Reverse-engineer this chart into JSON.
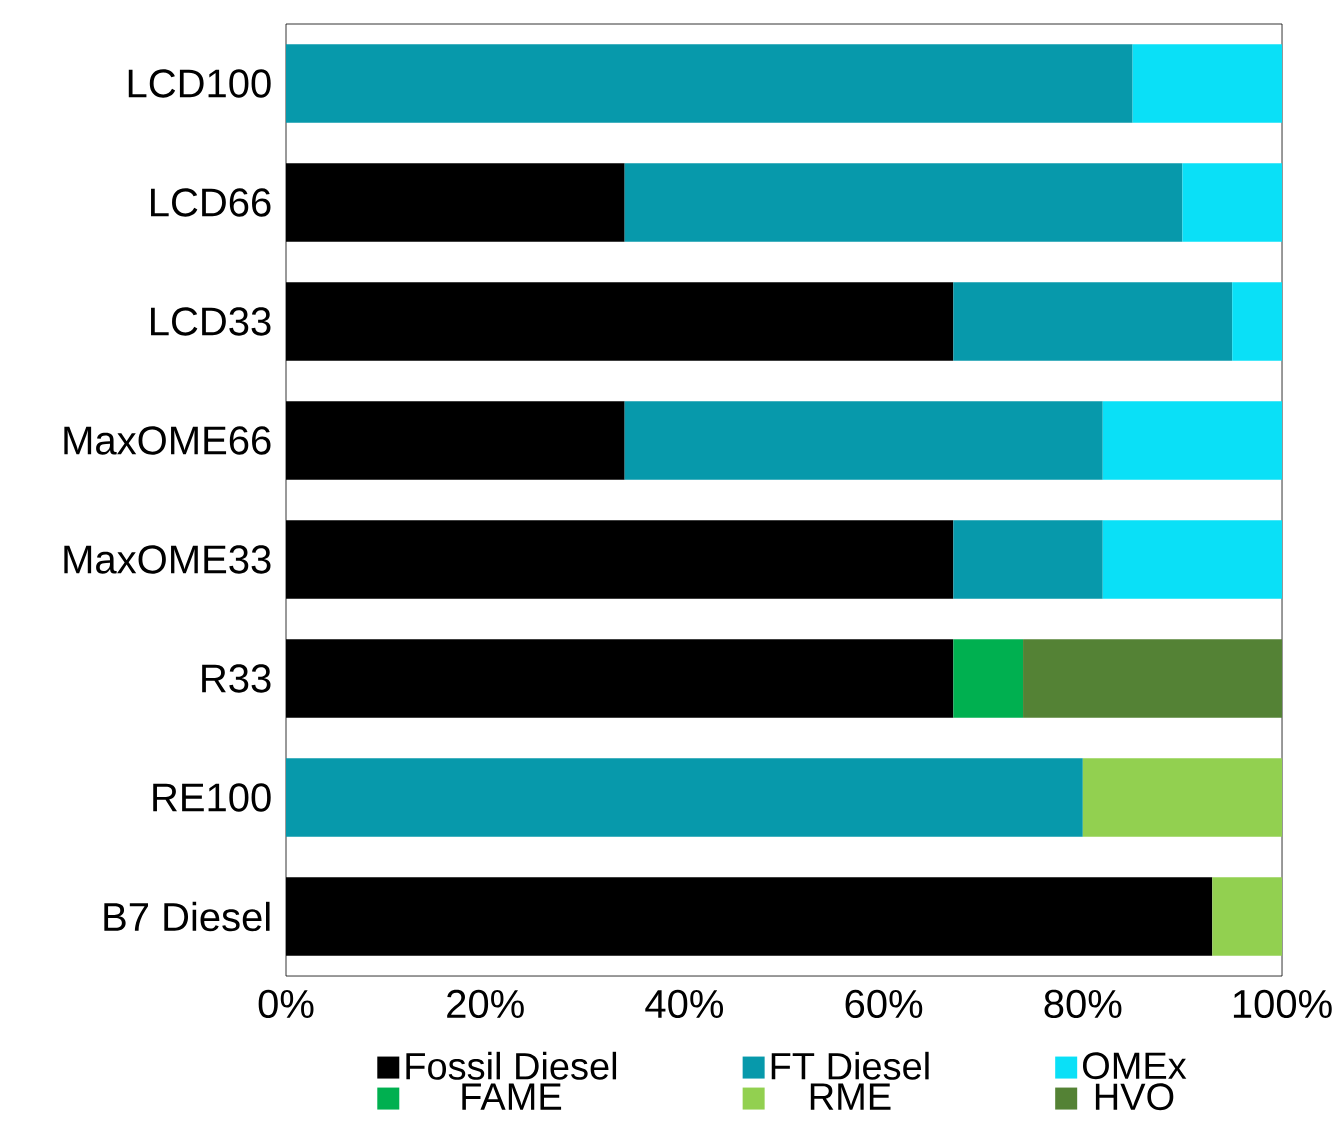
{
  "chart_data": {
    "type": "bar",
    "orientation": "horizontal",
    "stacked": true,
    "categories": [
      "LCD100",
      "LCD66",
      "LCD33",
      "MaxOME66",
      "MaxOME33",
      "R33",
      "RE100",
      "B7 Diesel"
    ],
    "series": [
      {
        "name": "Fossil Diesel",
        "color": "#000000",
        "values": [
          null,
          34,
          67,
          34,
          67,
          67,
          null,
          93
        ]
      },
      {
        "name": "FT Diesel",
        "color": "#0799ab",
        "values": [
          85,
          56,
          28,
          48,
          15,
          null,
          80,
          null
        ]
      },
      {
        "name": "OMEx",
        "color": "#0ae0f7",
        "values": [
          15,
          10,
          5,
          18,
          18,
          null,
          null,
          null
        ]
      },
      {
        "name": "FAME",
        "color": "#00b050",
        "values": [
          null,
          null,
          null,
          null,
          null,
          7,
          null,
          null
        ]
      },
      {
        "name": "RME",
        "color": "#92d050",
        "values": [
          null,
          null,
          null,
          null,
          null,
          null,
          20,
          7
        ]
      },
      {
        "name": "HVO",
        "color": "#548235",
        "values": [
          null,
          null,
          null,
          null,
          null,
          26,
          null,
          null
        ]
      }
    ],
    "xlim": [
      0,
      100
    ],
    "xticks": [
      {
        "value": 0,
        "label": "0%"
      },
      {
        "value": 20,
        "label": "20%"
      },
      {
        "value": 40,
        "label": "40%"
      },
      {
        "value": 60,
        "label": "60%"
      },
      {
        "value": 80,
        "label": "80%"
      },
      {
        "value": 100,
        "label": "100%"
      }
    ],
    "grid": false,
    "legend": "bottom"
  }
}
